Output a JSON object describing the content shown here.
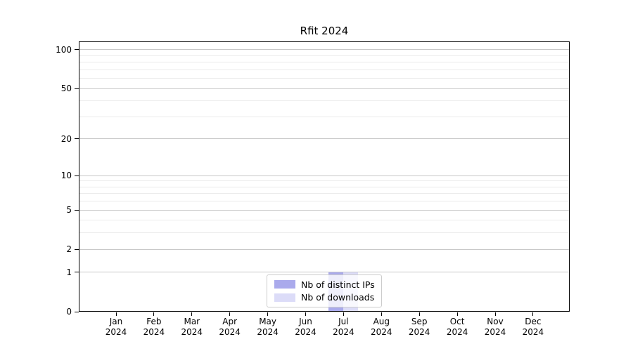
{
  "figure": {
    "title": "Rfit 2024"
  },
  "chart_data": {
    "type": "bar",
    "title": "Rfit 2024",
    "categories": [
      "Jan 2024",
      "Feb 2024",
      "Mar 2024",
      "Apr 2024",
      "May 2024",
      "Jun 2024",
      "Jul 2024",
      "Aug 2024",
      "Sep 2024",
      "Oct 2024",
      "Nov 2024",
      "Dec 2024"
    ],
    "series": [
      {
        "name": "Nb of distinct IPs",
        "color": "#aaaaec",
        "values": [
          0,
          0,
          0,
          0,
          0,
          0,
          1,
          0,
          0,
          0,
          0,
          0
        ]
      },
      {
        "name": "Nb of downloads",
        "color": "#dcdcf8",
        "values": [
          0,
          0,
          0,
          0,
          0,
          0,
          1,
          0,
          0,
          0,
          0,
          0
        ]
      }
    ],
    "xlabel": "",
    "ylabel": "",
    "yscale": "log1p",
    "ylim": [
      0,
      116
    ],
    "yticks": [
      0,
      1,
      2,
      5,
      10,
      20,
      50,
      100
    ],
    "yticks_minor": [
      3,
      4,
      6,
      7,
      8,
      9,
      30,
      40,
      60,
      70,
      80,
      90
    ],
    "grid": true,
    "legend_position": "lower center"
  },
  "colors": {
    "grid_major": "#c8c8c8",
    "grid_minor": "#ebebeb",
    "axis": "#000000",
    "legend_border": "#cccccc",
    "background": "#ffffff"
  }
}
